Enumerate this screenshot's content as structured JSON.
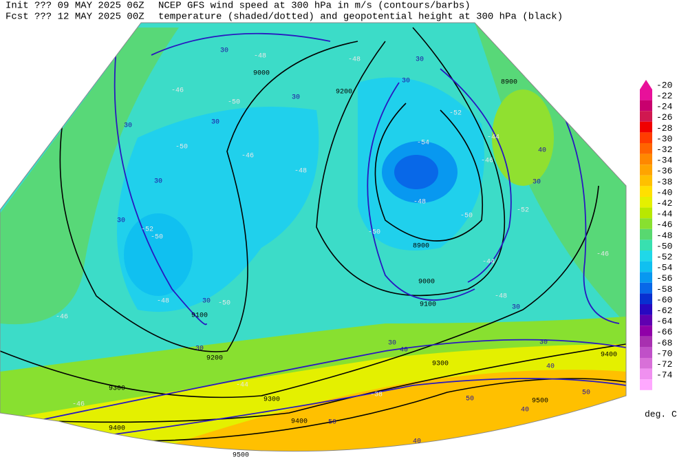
{
  "header": {
    "init": "Init  ??? 09 MAY 2025 06Z",
    "fcst": "Fcst ??? 12 MAY 2025 00Z",
    "title1": "NCEP GFS wind speed at 300 hPa in m/s (contours/barbs)",
    "title2": "temperature (shaded/dotted) and geopotential height at 300 hPa (black)"
  },
  "colorbar": {
    "levels": [
      -20,
      -22,
      -24,
      -26,
      -28,
      -30,
      -32,
      -34,
      -36,
      -38,
      -40,
      -42,
      -44,
      -46,
      -48,
      -50,
      -52,
      -54,
      -56,
      -58,
      -60,
      -62,
      -64,
      -66,
      -68,
      -70,
      -72,
      -74
    ],
    "colors": [
      "#e8109a",
      "#c8006e",
      "#d01850",
      "#f00000",
      "#ff3c00",
      "#ff6400",
      "#ff8800",
      "#ffa400",
      "#ffc000",
      "#ffe000",
      "#e4f000",
      "#b8e800",
      "#88e030",
      "#58d870",
      "#38e0b0",
      "#20d8e8",
      "#10c0f0",
      "#0898f0",
      "#0868e8",
      "#0830d0",
      "#2808c0",
      "#6000b0",
      "#9000a8",
      "#a830b0",
      "#c050c8",
      "#d870d8",
      "#f090f0",
      "#ffa8ff"
    ],
    "unit": "deg. C"
  },
  "map": {
    "height_labels": [
      "9000",
      "9200",
      "8900",
      "8900",
      "9000",
      "9100",
      "9100",
      "9200",
      "9300",
      "9300",
      "9400",
      "9400",
      "9400",
      "9500",
      "9500",
      "9300"
    ],
    "temp_labels": [
      "-48",
      "-48",
      "-46",
      "-50",
      "-50",
      "-46",
      "-48",
      "-52",
      "-50",
      "-50",
      "-48",
      "-46",
      "-52",
      "-54",
      "-48",
      "-50",
      "-44",
      "-46",
      "-52",
      "-46",
      "-44",
      "-46",
      "-48",
      "-50",
      "-44",
      "-38"
    ],
    "wind_labels": [
      "30",
      "30",
      "30",
      "30",
      "30",
      "30",
      "30",
      "30",
      "30",
      "30",
      "40",
      "30",
      "30",
      "30",
      "40",
      "40",
      "50",
      "50",
      "40",
      "50",
      "30",
      "40"
    ]
  }
}
